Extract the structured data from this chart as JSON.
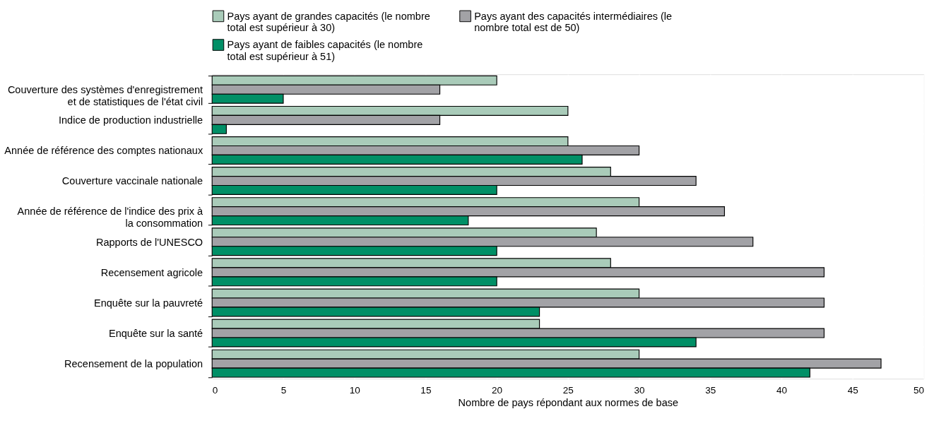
{
  "chart_data": {
    "type": "bar",
    "orientation": "horizontal",
    "xlabel": "Nombre de pays répondant aux normes de base",
    "categories": [
      "Couverture des systèmes d'enregistrement et de statistiques de l'état civil",
      "Indice de production industrielle",
      "Année de référence des comptes nationaux",
      "Couverture vaccinale nationale",
      "Année de référence de l'indice des prix à la consommation",
      "Rapports de l'UNESCO",
      "Recensement agricole",
      "Enquête sur la pauvreté",
      "Enquête sur la santé",
      "Recensement de la population"
    ],
    "series": [
      {
        "name": "Pays ayant de grandes capacités (le nombre total est supérieur à 30)",
        "color": "#a9cbb9",
        "values": [
          20,
          25,
          25,
          28,
          30,
          27,
          28,
          30,
          23,
          30
        ]
      },
      {
        "name": "Pays ayant des capacités intermédiaires (le nombre total est de 50)",
        "color": "#a2a2a6",
        "values": [
          16,
          16,
          30,
          34,
          36,
          38,
          43,
          43,
          43,
          47
        ]
      },
      {
        "name": "Pays ayant de faibles capacités (le nombre total est supérieur à 51)",
        "color": "#008f66",
        "values": [
          5,
          1,
          26,
          20,
          18,
          20,
          20,
          23,
          34,
          42
        ]
      }
    ],
    "xlim": [
      0,
      50
    ],
    "xticks": [
      0,
      5,
      10,
      15,
      20,
      25,
      30,
      35,
      40,
      45,
      50
    ],
    "grid": true,
    "legend": "top"
  }
}
